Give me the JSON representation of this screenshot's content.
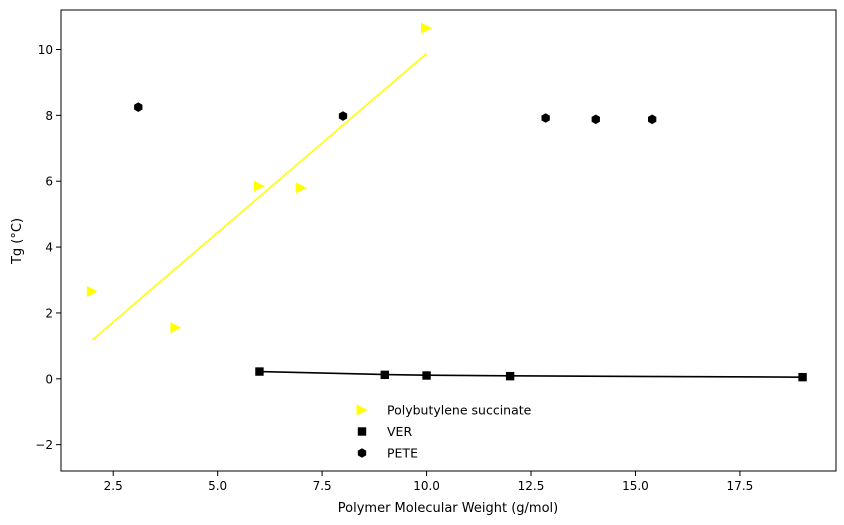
{
  "chart_data": {
    "type": "scatter",
    "title": "",
    "xlabel": "Polymer Molecular Weight (g/mol)",
    "ylabel": "Tg (°C)",
    "xlim": [
      1.25,
      19.8
    ],
    "ylim": [
      -2.8,
      11.2
    ],
    "xticks": [
      2.5,
      5.0,
      7.5,
      10.0,
      12.5,
      15.0,
      17.5
    ],
    "xtick_labels": [
      "2.5",
      "5.0",
      "7.5",
      "10.0",
      "12.5",
      "15.0",
      "17.5"
    ],
    "yticks": [
      -2,
      0,
      2,
      4,
      6,
      8,
      10
    ],
    "ytick_labels": [
      "−2",
      "0",
      "2",
      "4",
      "6",
      "8",
      "10"
    ],
    "grid": false,
    "legend_position": "bottom-center",
    "series": [
      {
        "name": "Polybutylene succinate",
        "marker": "triangle-right",
        "color": "#ffff00",
        "points": [
          [
            2.0,
            2.65
          ],
          [
            4.0,
            1.55
          ],
          [
            6.0,
            5.85
          ],
          [
            7.0,
            5.8
          ],
          [
            10.0,
            10.65
          ]
        ],
        "fit": [
          [
            2.0,
            1.18
          ],
          [
            10.0,
            9.88
          ]
        ]
      },
      {
        "name": "VER",
        "marker": "square",
        "color": "#000000",
        "points": [
          [
            6.0,
            0.22
          ],
          [
            9.0,
            0.12
          ],
          [
            10.0,
            0.1
          ],
          [
            12.0,
            0.08
          ],
          [
            19.0,
            0.05
          ]
        ],
        "fit_line": [
          [
            6.0,
            0.22
          ],
          [
            9.0,
            0.13
          ],
          [
            10.0,
            0.11
          ],
          [
            12.0,
            0.09
          ],
          [
            19.0,
            0.05
          ]
        ]
      },
      {
        "name": "PETE",
        "marker": "hexagon",
        "color": "#000000",
        "points": [
          [
            3.1,
            8.25
          ],
          [
            8.0,
            7.98
          ],
          [
            12.85,
            7.92
          ],
          [
            14.05,
            7.88
          ],
          [
            15.4,
            7.88
          ]
        ]
      }
    ]
  }
}
